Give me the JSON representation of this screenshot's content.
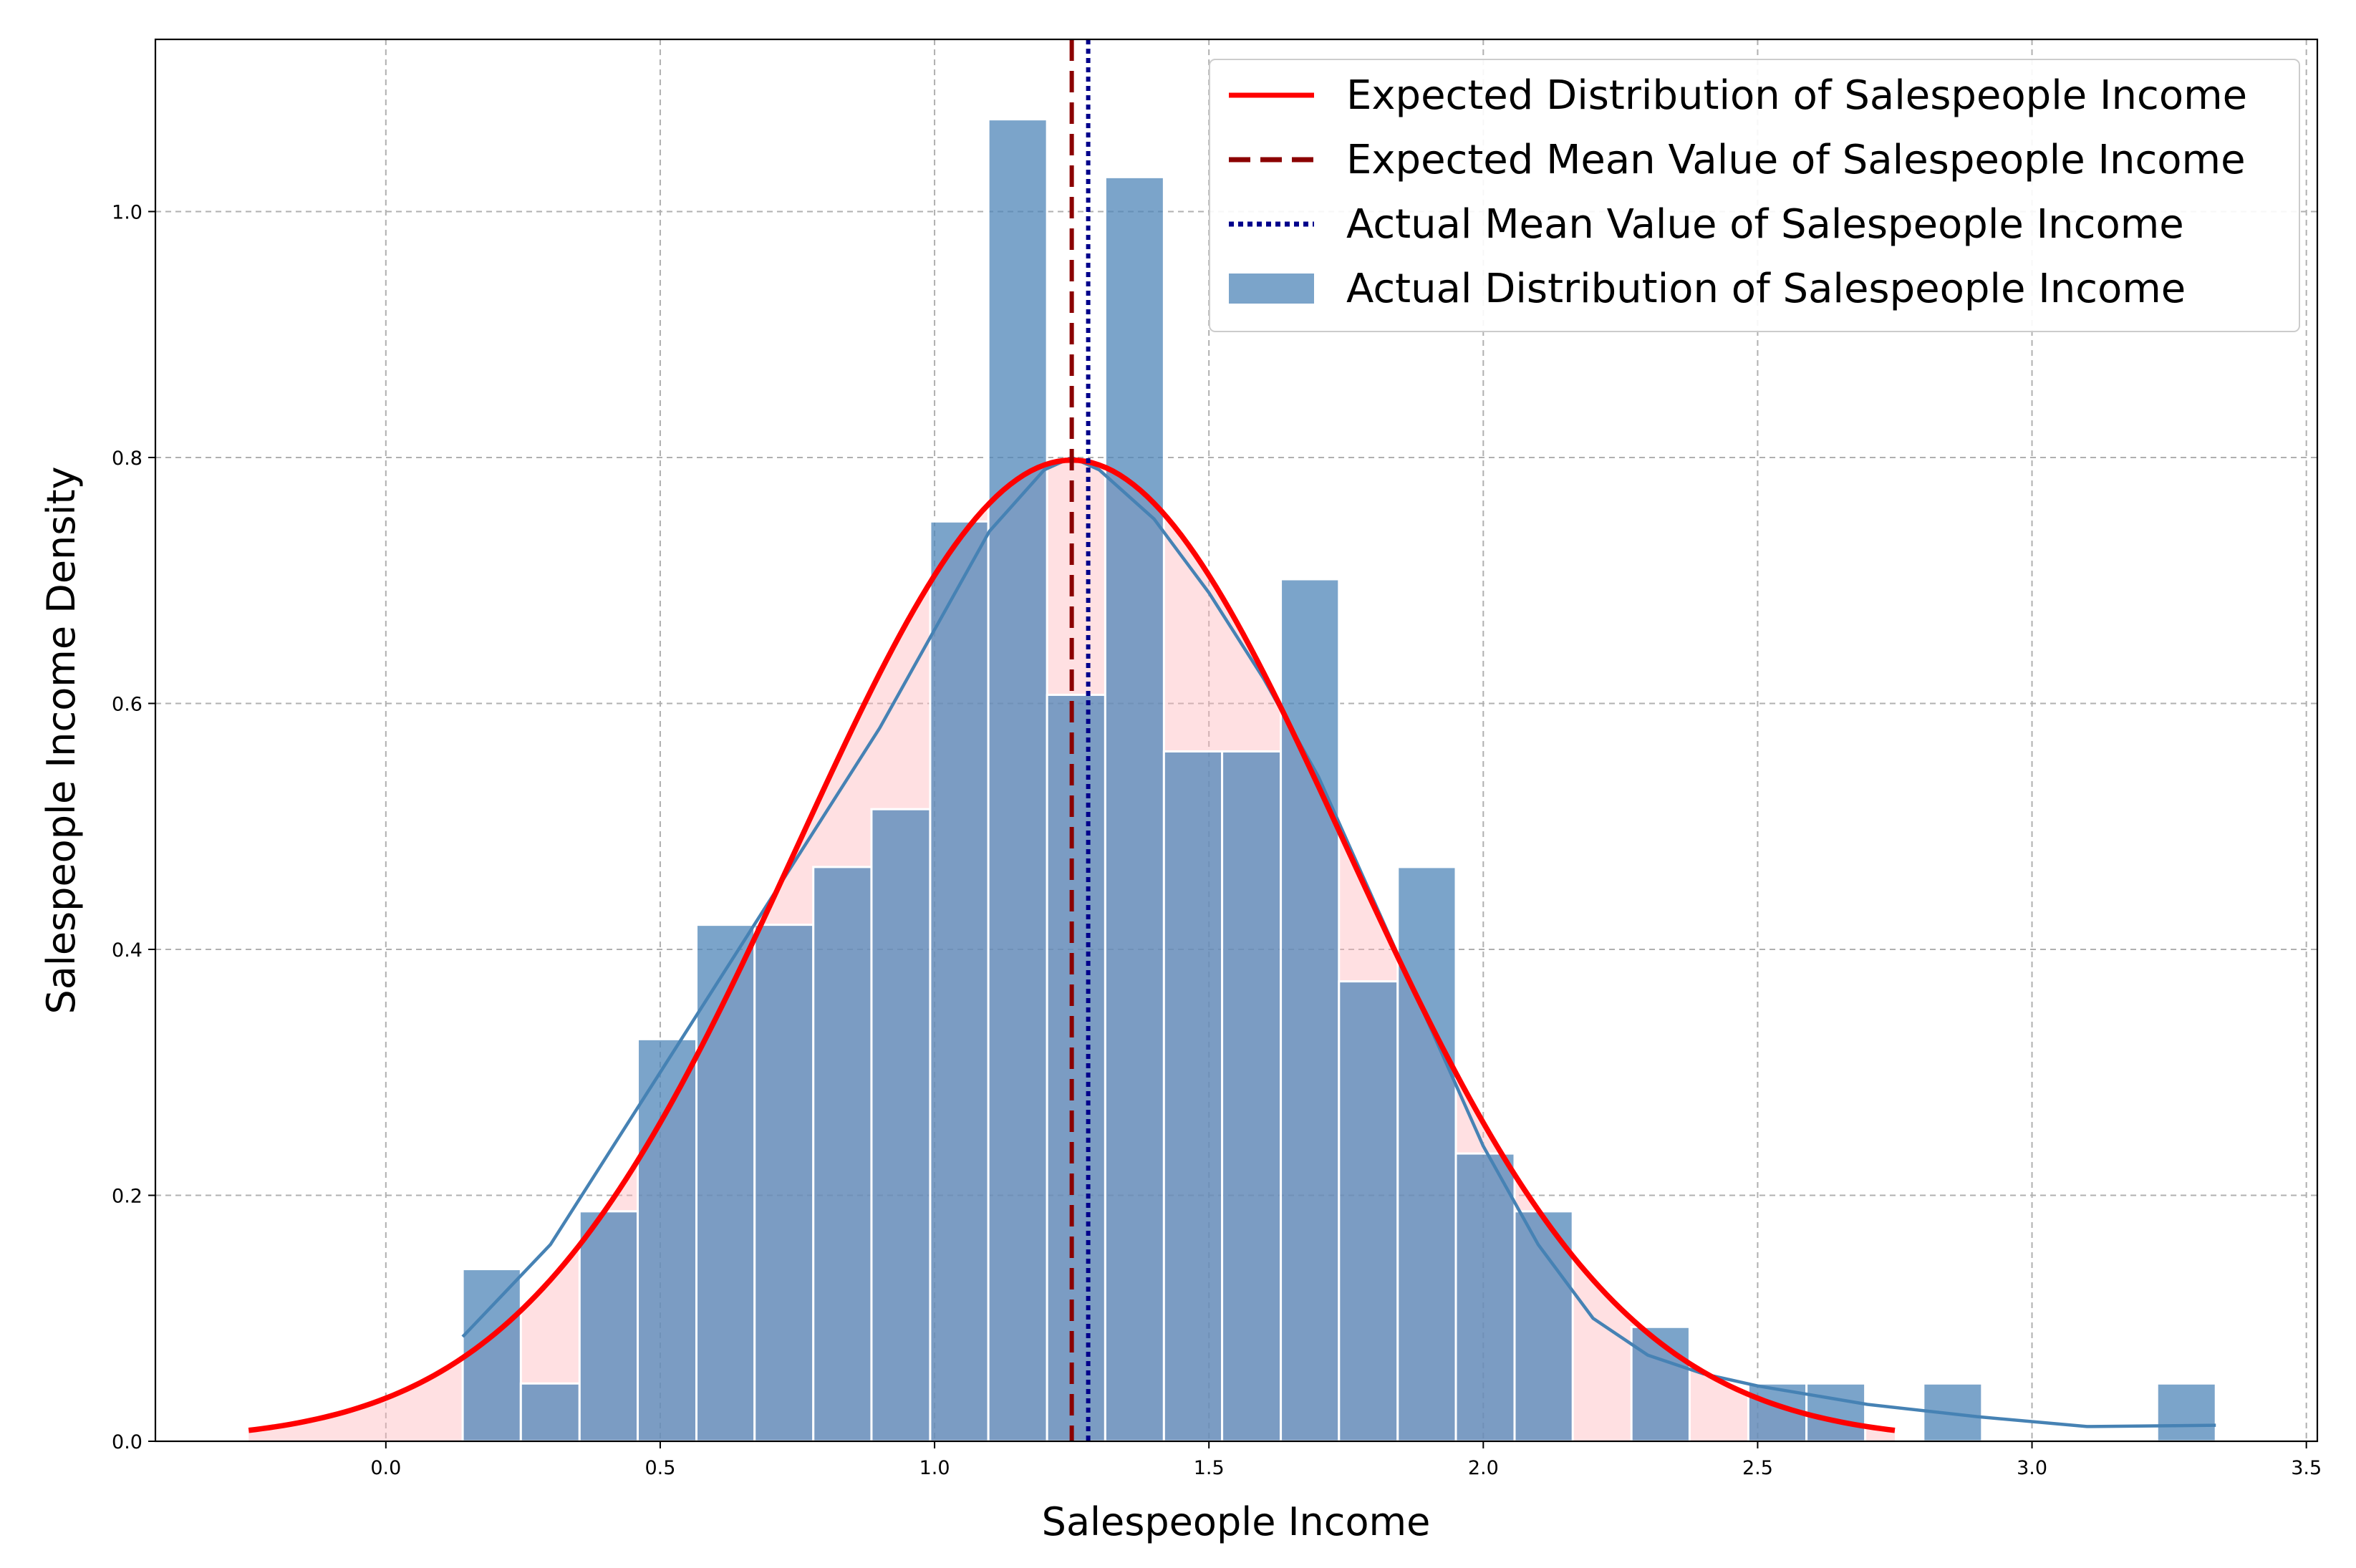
{
  "chart_data": {
    "type": "histogram",
    "xlabel": "Salespeople Income",
    "ylabel": "Salespeople Income Density",
    "xlim": [
      -0.42,
      3.52
    ],
    "ylim": [
      0,
      1.14
    ],
    "x_ticks": [
      0.0,
      0.5,
      1.0,
      1.5,
      2.0,
      2.5,
      3.0,
      3.5
    ],
    "x_tick_labels": [
      "0.0",
      "0.5",
      "1.0",
      "1.5",
      "2.0",
      "2.5",
      "3.0",
      "3.5"
    ],
    "y_ticks": [
      0.0,
      0.2,
      0.4,
      0.6,
      0.8,
      1.0
    ],
    "y_tick_labels": [
      "0.0",
      "0.2",
      "0.4",
      "0.6",
      "0.8",
      "1.0"
    ],
    "grid": true,
    "legend_position": "top-right",
    "series": {
      "actual_histogram": {
        "name": "Actual Distribution of Salespeople Income",
        "color": "#4f86b8",
        "opacity": 0.75,
        "bin_edges": [
          0.14,
          0.246,
          0.353,
          0.459,
          0.566,
          0.672,
          0.779,
          0.885,
          0.992,
          1.098,
          1.205,
          1.311,
          1.418,
          1.524,
          1.631,
          1.737,
          1.844,
          1.95,
          2.057,
          2.163,
          2.27,
          2.376,
          2.483,
          2.589,
          2.696,
          2.802,
          2.909,
          3.015,
          3.122,
          3.228,
          3.335
        ],
        "densities": [
          0.14,
          0.047,
          0.187,
          0.327,
          0.42,
          0.42,
          0.467,
          0.514,
          0.748,
          1.075,
          0.607,
          1.028,
          0.561,
          0.561,
          0.701,
          0.374,
          0.467,
          0.234,
          0.187,
          0.0,
          0.093,
          0.0,
          0.047,
          0.047,
          0.0,
          0.047,
          0.0,
          0.0,
          0.0,
          0.047
        ]
      },
      "expected_distribution": {
        "name": "Expected Distribution of Salespeople Income",
        "type": "normal_pdf",
        "mean": 1.25,
        "std": 0.5,
        "x_range": [
          -0.25,
          2.75
        ],
        "color": "#ff0000",
        "fill_color": "#ffb6b9"
      },
      "actual_kde": {
        "name": "KDE",
        "color": "#4682b4",
        "x": [
          0.14,
          0.3,
          0.5,
          0.7,
          0.9,
          1.0,
          1.1,
          1.2,
          1.25,
          1.3,
          1.4,
          1.5,
          1.6,
          1.7,
          1.8,
          1.9,
          2.0,
          2.1,
          2.2,
          2.3,
          2.4,
          2.5,
          2.7,
          2.9,
          3.1,
          3.335
        ],
        "y": [
          0.085,
          0.16,
          0.3,
          0.44,
          0.58,
          0.66,
          0.74,
          0.79,
          0.8,
          0.79,
          0.75,
          0.69,
          0.62,
          0.54,
          0.44,
          0.34,
          0.24,
          0.16,
          0.1,
          0.07,
          0.055,
          0.045,
          0.03,
          0.02,
          0.012,
          0.013
        ]
      },
      "expected_mean": {
        "name": "Expected Mean Value of Salespeople Income",
        "value": 1.25,
        "color": "#8b0000",
        "style": "dashed"
      },
      "actual_mean": {
        "name": "Actual Mean Value of Salespeople Income",
        "value": 1.28,
        "color": "#00008b",
        "style": "dotted"
      }
    },
    "legend_entries": [
      {
        "label": "Expected Distribution of Salespeople Income",
        "kind": "solid-line",
        "color": "#ff0000"
      },
      {
        "label": "Expected Mean Value of Salespeople Income",
        "kind": "dashed-line",
        "color": "#8b0000"
      },
      {
        "label": "Actual Mean Value of Salespeople Income",
        "kind": "dotted-line",
        "color": "#00008b"
      },
      {
        "label": "Actual Distribution of Salespeople Income",
        "kind": "patch",
        "color": "#4f86b8"
      }
    ]
  }
}
